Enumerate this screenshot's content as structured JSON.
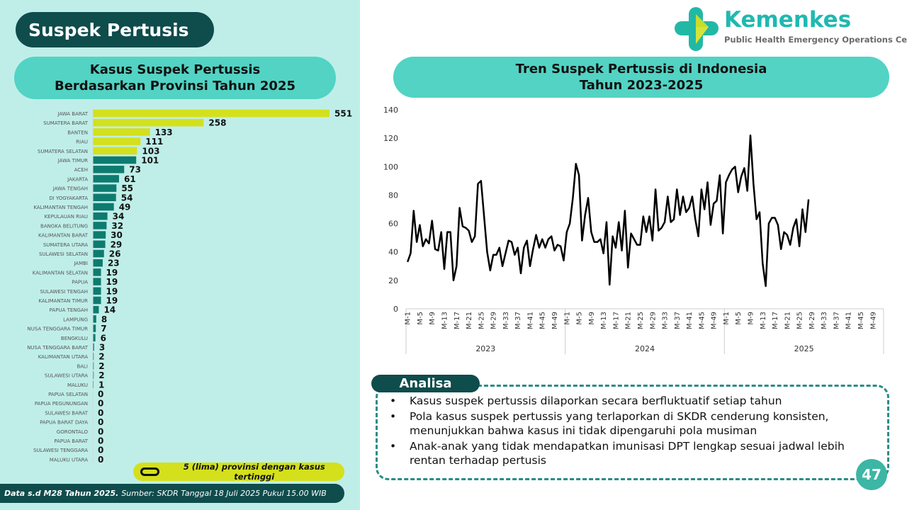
{
  "page_title": "Suspek Pertusis",
  "logo": {
    "name": "Kemenkes",
    "subtitle": "Public Health Emergency Operations Center"
  },
  "colors": {
    "dark_teal": "#0f4c4c",
    "header_teal": "#52d3c4",
    "highlight_bar": "#d4e01c",
    "normal_bar": "#0e7b70",
    "panel_bg": "#bfeee9"
  },
  "chart_data": [
    {
      "type": "bar",
      "orientation": "horizontal",
      "title_line1": "Kasus Suspek Pertussis",
      "title_line2": "Berdasarkan Provinsi Tahun 2025",
      "categories": [
        "JAWA BARAT",
        "SUMATERA BARAT",
        "BANTEN",
        "RIAU",
        "SUMATERA SELATAN",
        "JAWA TIMUR",
        "ACEH",
        "JAKARTA",
        "JAWA TENGAH",
        "DI YOGYAKARTA",
        "KALIMANTAN TENGAH",
        "KEPULAUAN RIAU",
        "BANGKA BELITUNG",
        "KALIMANTAN BARAT",
        "SUMATERA UTARA",
        "SULAWESI SELATAN",
        "JAMBI",
        "KALIMANTAN SELATAN",
        "PAPUA",
        "SULAWESI TENGAH",
        "KALIMANTAN TIMUR",
        "PAPUA TENGAH",
        "LAMPUNG",
        "NUSA TENGGARA TIMUR",
        "BENGKULU",
        "NUSA TENGGARA BARAT",
        "KALIMANTAN UTARA",
        "BALI",
        "SULAWESI UTARA",
        "MALUKU",
        "PAPUA SELATAN",
        "PAPUA PEGUNUNGAN",
        "SULAWESI BARAT",
        "PAPUA BARAT DAYA",
        "GORONTALO",
        "PAPUA BARAT",
        "SULAWESI TENGGARA",
        "MALUKU UTARA"
      ],
      "values": [
        551,
        258,
        133,
        111,
        103,
        101,
        73,
        61,
        55,
        54,
        49,
        34,
        32,
        30,
        29,
        26,
        23,
        19,
        19,
        19,
        19,
        14,
        8,
        7,
        6,
        3,
        2,
        2,
        2,
        1,
        0,
        0,
        0,
        0,
        0,
        0,
        0,
        0
      ],
      "highlight_top": 5,
      "legend": "5 (lima) provinsi dengan kasus tertinggi"
    },
    {
      "type": "line",
      "title_line1": "Tren Suspek Pertussis di Indonesia",
      "title_line2": "Tahun 2023-2025",
      "ylim": [
        0,
        140
      ],
      "yticks": [
        0,
        20,
        40,
        60,
        80,
        100,
        120,
        140
      ],
      "years": [
        "2023",
        "2024",
        "2025"
      ],
      "weeks_per_year": 52,
      "tick_every": 4,
      "week_prefix": "M-",
      "series": [
        {
          "year": "2023",
          "values": [
            33,
            39,
            69,
            47,
            59,
            44,
            49,
            46,
            62,
            42,
            41,
            54,
            28,
            54,
            54,
            20,
            30,
            71,
            58,
            57,
            55,
            47,
            51,
            88,
            90,
            65,
            40,
            27,
            38,
            38,
            43,
            30,
            39,
            48,
            47,
            38,
            43,
            25,
            43,
            48,
            30,
            42,
            52,
            43,
            49,
            43,
            49,
            51,
            41,
            45,
            44,
            34
          ]
        },
        {
          "year": "2024",
          "values": [
            54,
            60,
            78,
            102,
            94,
            48,
            66,
            78,
            54,
            47,
            47,
            49,
            39,
            61,
            17,
            51,
            43,
            61,
            41,
            69,
            29,
            53,
            49,
            45,
            45,
            65,
            54,
            65,
            48,
            84,
            55,
            57,
            61,
            79,
            61,
            63,
            84,
            66,
            79,
            68,
            71,
            79,
            63,
            51,
            84,
            70,
            89,
            59,
            74,
            76,
            94,
            53
          ]
        },
        {
          "year": "2025",
          "values": [
            89,
            94,
            98,
            100,
            82,
            93,
            99,
            83,
            122,
            88,
            63,
            68,
            32,
            16,
            60,
            64,
            64,
            59,
            42,
            54,
            52,
            45,
            57,
            63,
            44,
            70,
            54,
            77
          ]
        }
      ],
      "color": "#000000"
    }
  ],
  "footer": {
    "bold": "Data s.d M28 Tahun 2025.",
    "rest": "Sumber: SKDR Tanggal 18 Juli 2025 Pukul 15.00 WIB"
  },
  "analisa": {
    "label": "Analisa",
    "bullets": [
      "Kasus suspek pertussis dilaporkan secara berfluktuatif setiap tahun",
      "Pola kasus suspek pertussis yang terlaporkan di SKDR cenderung konsisten, menunjukkan bahwa kasus ini tidak dipengaruhi pola musiman",
      "Anak-anak yang tidak mendapatkan imunisasi DPT lengkap sesuai jadwal lebih rentan terhadap pertusis"
    ]
  },
  "page_number": "47"
}
